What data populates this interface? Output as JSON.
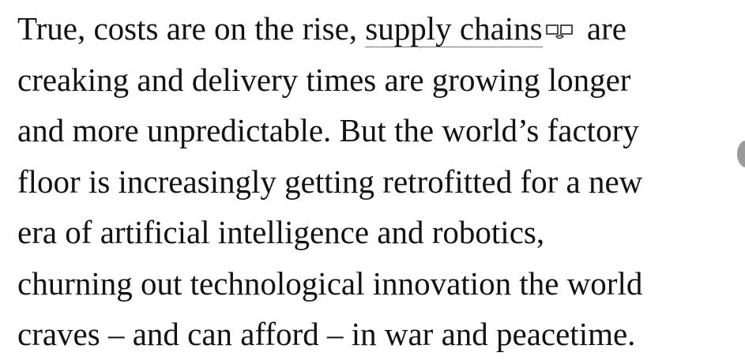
{
  "article": {
    "line1_before": "True, costs are on the rise, ",
    "link_text": "supply chains",
    "link_icon": "glossary-icon",
    "line1_after": " are",
    "lines": [
      "creaking and delivery times are growing longer",
      "and more unpredictable. But the world’s factory",
      "floor is increasingly getting retrofitted for a new",
      "era of artificial intelligence and robotics,",
      "churning out technological innovation the world",
      "craves – and can afford – in war and peacetime."
    ]
  }
}
